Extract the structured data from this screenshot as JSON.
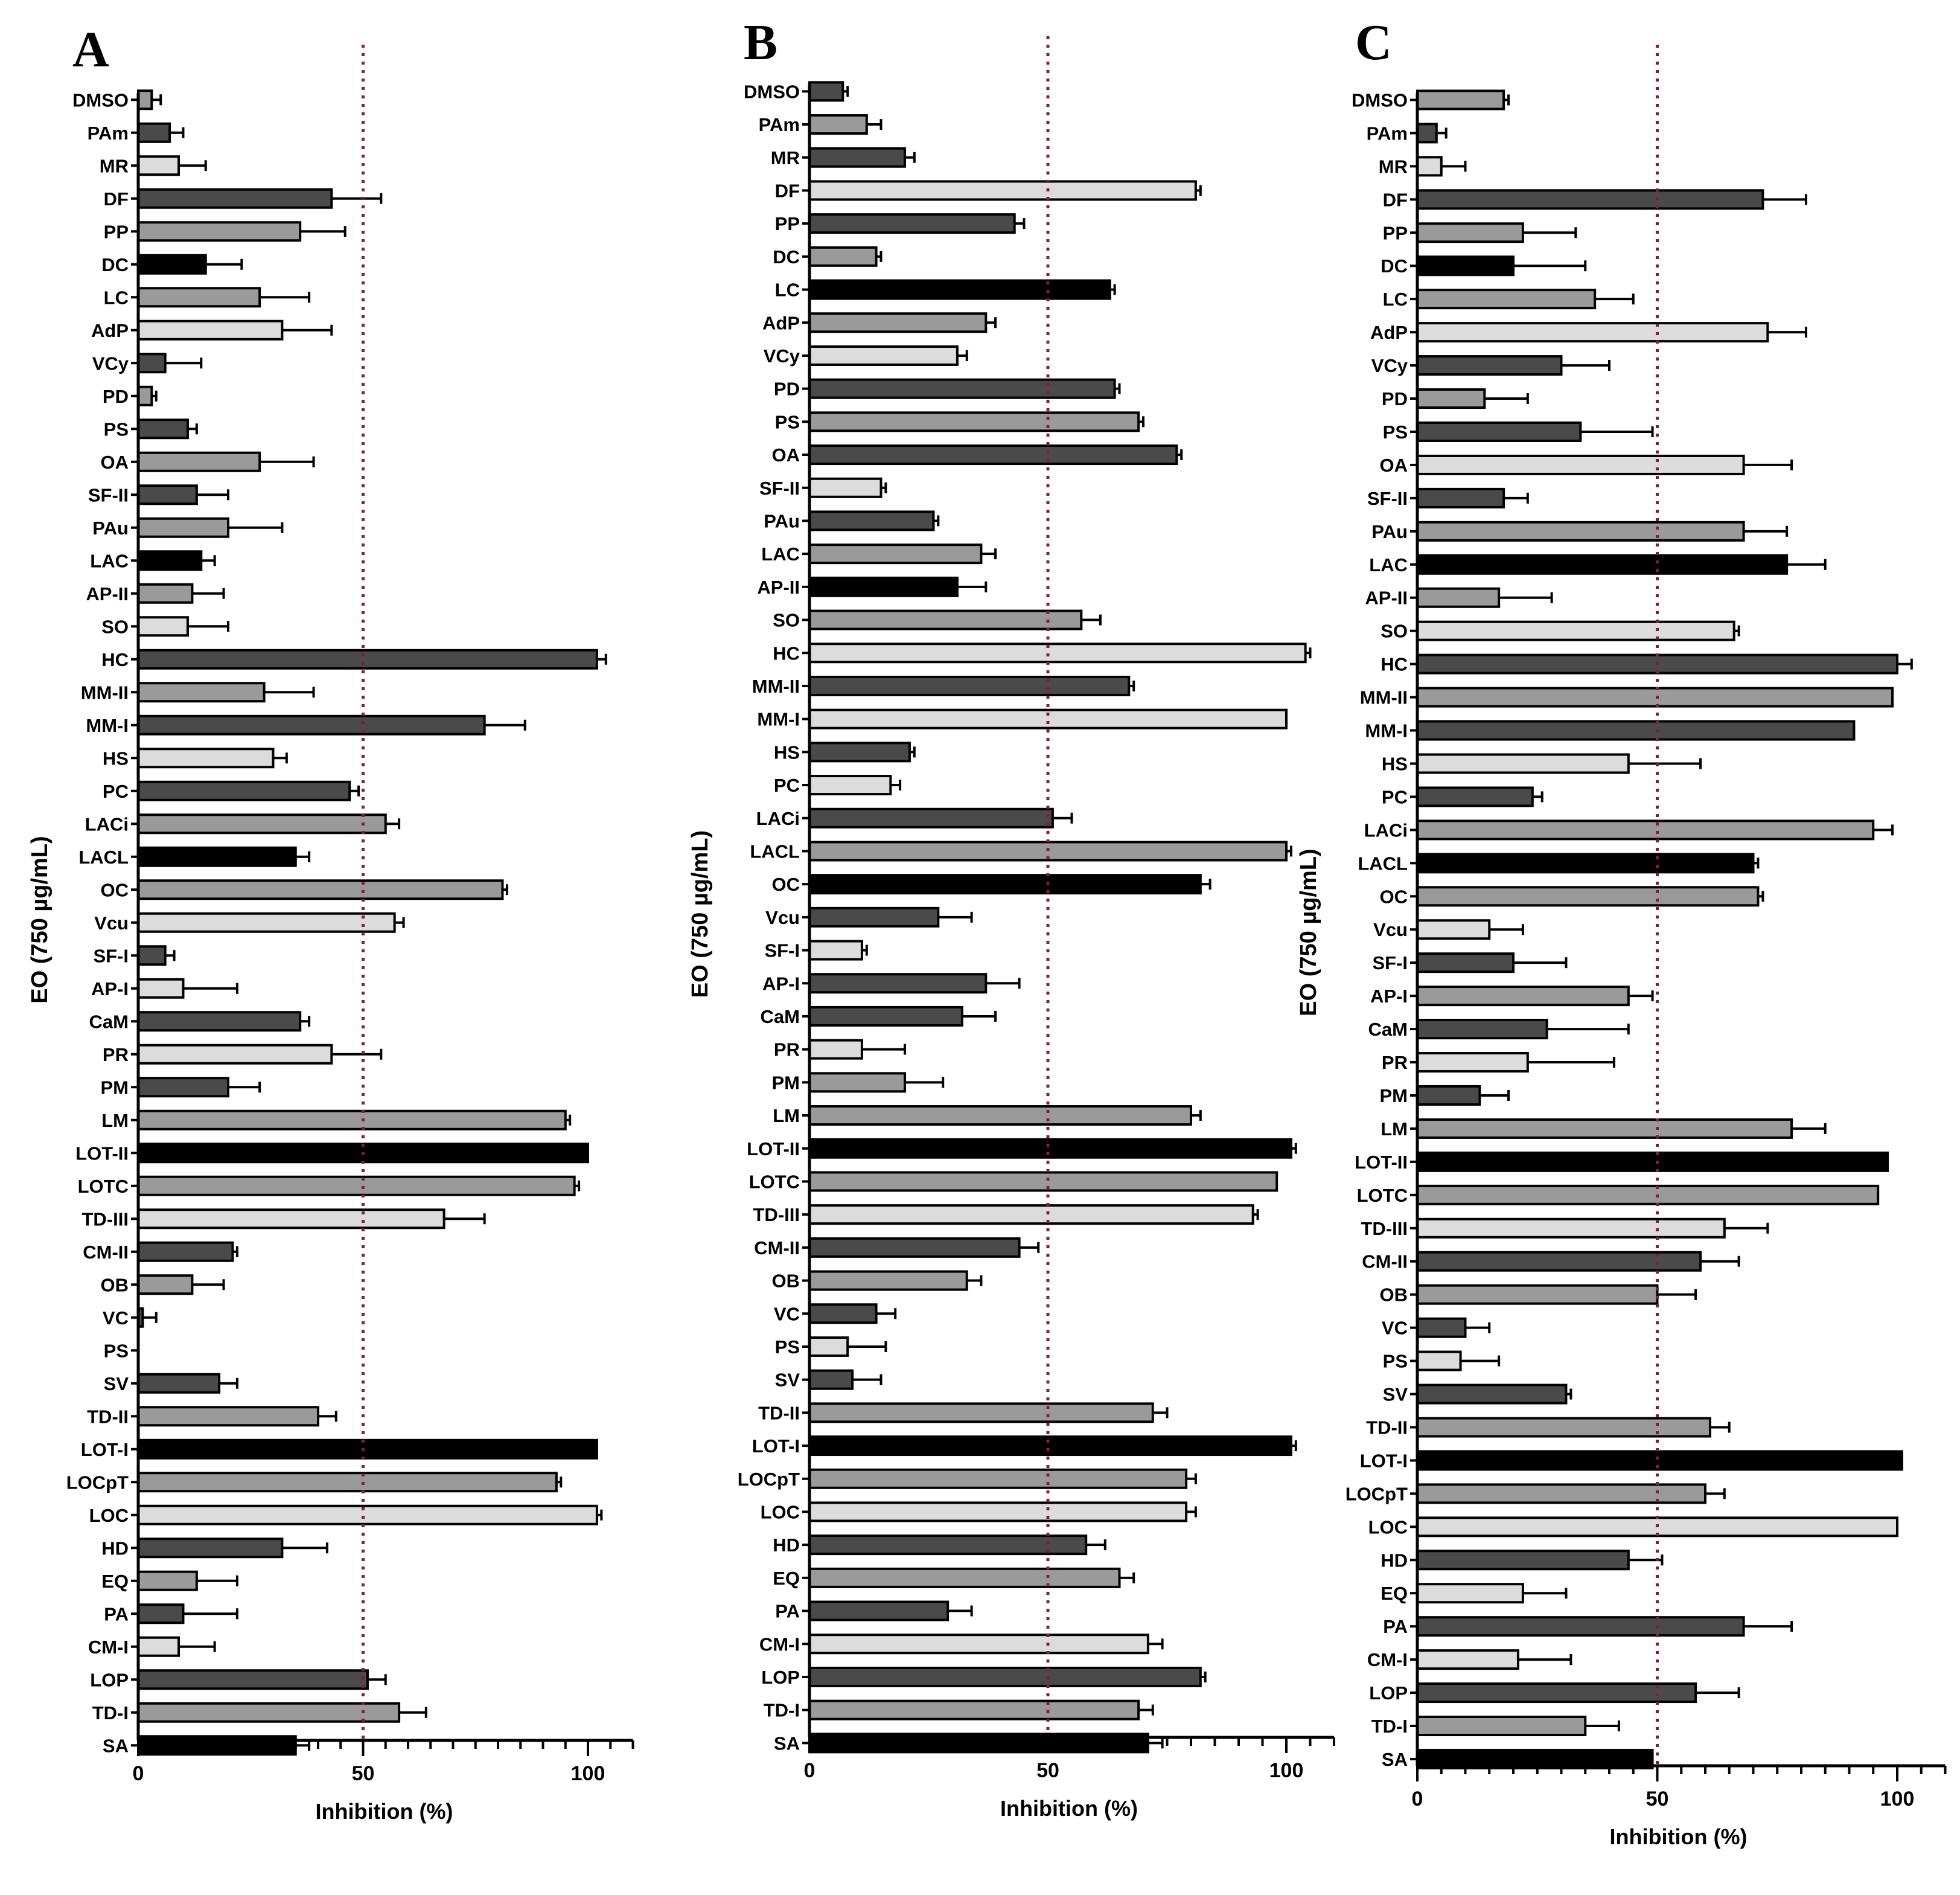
{
  "figure": {
    "ref_line": 50,
    "colors": {
      "black": "#000000",
      "dark": "#4a4a4a",
      "mid": "#9a9a9a",
      "light": "#dcdcdc",
      "ref_line": "#8b1a3a"
    }
  },
  "chart_data": [
    {
      "type": "bar",
      "panel": "A",
      "ylabel": "EO (750 µg/mL)",
      "xlabel": "Inhibition (%)",
      "xlim": [
        0,
        110
      ],
      "xticks": [
        "0",
        "50",
        "100"
      ],
      "categories": [
        "DMSO",
        "PAm",
        "MR",
        "DF",
        "PP",
        "DC",
        "LC",
        "AdP",
        "VCy",
        "PD",
        "PS",
        "OA",
        "SF-II",
        "PAu",
        "LAC",
        "AP-II",
        "SO",
        "HC",
        "MM-II",
        "MM-I",
        "HS",
        "PC",
        "LACi",
        "LACL",
        "OC",
        "Vcu",
        "SF-I",
        "AP-I",
        "CaM",
        "PR",
        "PM",
        "LM",
        "LOT-II",
        "LOTC",
        "TD-III",
        "CM-II",
        "OB",
        "VC",
        "PS",
        "SV",
        "TD-II",
        "LOT-I",
        "LOCpT",
        "LOC",
        "HD",
        "EQ",
        "PA",
        "CM-I",
        "LOP",
        "TD-I",
        "SA"
      ],
      "values": [
        3,
        7,
        9,
        43,
        36,
        15,
        27,
        32,
        6,
        3,
        11,
        27,
        13,
        20,
        14,
        12,
        11,
        102,
        28,
        77,
        30,
        47,
        55,
        35,
        81,
        57,
        6,
        10,
        36,
        43,
        20,
        95,
        100,
        97,
        68,
        21,
        12,
        1,
        0,
        18,
        40,
        102,
        93,
        102,
        32,
        13,
        10,
        9,
        51,
        58,
        35
      ],
      "errors": [
        2,
        3,
        6,
        11,
        10,
        8,
        11,
        11,
        8,
        1,
        2,
        12,
        7,
        12,
        3,
        7,
        9,
        2,
        11,
        9,
        3,
        2,
        3,
        3,
        1,
        2,
        2,
        12,
        2,
        11,
        7,
        1,
        0,
        1,
        9,
        1,
        7,
        3,
        0,
        4,
        4,
        0,
        1,
        1,
        10,
        9,
        12,
        8,
        4,
        6,
        3
      ],
      "shades": [
        "mid",
        "dark",
        "light",
        "dark",
        "mid",
        "black",
        "mid",
        "light",
        "dark",
        "mid",
        "dark",
        "mid",
        "dark",
        "mid",
        "black",
        "mid",
        "light",
        "dark",
        "mid",
        "dark",
        "light",
        "dark",
        "mid",
        "black",
        "mid",
        "light",
        "dark",
        "light",
        "dark",
        "light",
        "dark",
        "mid",
        "black",
        "mid",
        "light",
        "dark",
        "mid",
        "dark",
        "mid",
        "dark",
        "mid",
        "black",
        "mid",
        "light",
        "dark",
        "mid",
        "dark",
        "light",
        "dark",
        "mid",
        "black"
      ]
    },
    {
      "type": "bar",
      "panel": "B",
      "ylabel": "EO (750 µg/mL)",
      "xlabel": "Inhibition (%)",
      "xlim": [
        0,
        110
      ],
      "xticks": [
        "0",
        "50",
        "100"
      ],
      "categories": [
        "DMSO",
        "PAm",
        "MR",
        "DF",
        "PP",
        "DC",
        "LC",
        "AdP",
        "VCy",
        "PD",
        "PS",
        "OA",
        "SF-II",
        "PAu",
        "LAC",
        "AP-II",
        "SO",
        "HC",
        "MM-II",
        "MM-I",
        "HS",
        "PC",
        "LACi",
        "LACL",
        "OC",
        "Vcu",
        "SF-I",
        "AP-I",
        "CaM",
        "PR",
        "PM",
        "LM",
        "LOT-II",
        "LOTC",
        "TD-III",
        "CM-II",
        "OB",
        "VC",
        "PS",
        "SV",
        "TD-II",
        "LOT-I",
        "LOCpT",
        "LOC",
        "HD",
        "EQ",
        "PA",
        "CM-I",
        "LOP",
        "TD-I",
        "SA"
      ],
      "values": [
        7,
        12,
        20,
        81,
        43,
        14,
        63,
        37,
        31,
        64,
        69,
        77,
        15,
        26,
        36,
        31,
        57,
        104,
        67,
        100,
        21,
        17,
        51,
        100,
        82,
        27,
        11,
        37,
        32,
        11,
        20,
        80,
        101,
        98,
        93,
        44,
        33,
        14,
        8,
        9,
        72,
        101,
        79,
        79,
        58,
        65,
        29,
        71,
        82,
        69,
        71
      ],
      "errors": [
        1,
        3,
        2,
        1,
        2,
        1,
        1,
        2,
        2,
        1,
        1,
        1,
        1,
        1,
        3,
        6,
        4,
        1,
        1,
        0,
        1,
        2,
        4,
        1,
        2,
        7,
        1,
        7,
        7,
        9,
        8,
        2,
        1,
        0,
        1,
        4,
        3,
        4,
        8,
        6,
        3,
        1,
        2,
        2,
        4,
        3,
        5,
        3,
        1,
        3,
        3
      ],
      "shades": [
        "dark",
        "mid",
        "dark",
        "light",
        "dark",
        "mid",
        "black",
        "mid",
        "light",
        "dark",
        "mid",
        "dark",
        "light",
        "dark",
        "mid",
        "black",
        "mid",
        "light",
        "dark",
        "light",
        "dark",
        "light",
        "dark",
        "mid",
        "black",
        "dark",
        "light",
        "dark",
        "dark",
        "light",
        "mid",
        "mid",
        "black",
        "mid",
        "light",
        "dark",
        "mid",
        "dark",
        "light",
        "dark",
        "mid",
        "black",
        "mid",
        "light",
        "dark",
        "mid",
        "dark",
        "light",
        "dark",
        "mid",
        "black"
      ]
    },
    {
      "type": "bar",
      "panel": "C",
      "ylabel": "EO (750 µg/mL)",
      "xlabel": "Inhibition (%)",
      "xlim": [
        0,
        110
      ],
      "xticks": [
        "0",
        "50",
        "100"
      ],
      "categories": [
        "DMSO",
        "PAm",
        "MR",
        "DF",
        "PP",
        "DC",
        "LC",
        "AdP",
        "VCy",
        "PD",
        "PS",
        "OA",
        "SF-II",
        "PAu",
        "LAC",
        "AP-II",
        "SO",
        "HC",
        "MM-II",
        "MM-I",
        "HS",
        "PC",
        "LACi",
        "LACL",
        "OC",
        "Vcu",
        "SF-I",
        "AP-I",
        "CaM",
        "PR",
        "PM",
        "LM",
        "LOT-II",
        "LOTC",
        "TD-III",
        "CM-II",
        "OB",
        "VC",
        "PS",
        "SV",
        "TD-II",
        "LOT-I",
        "LOCpT",
        "LOC",
        "HD",
        "EQ",
        "PA",
        "CM-I",
        "LOP",
        "TD-I",
        "SA"
      ],
      "values": [
        18,
        4,
        5,
        72,
        22,
        20,
        37,
        73,
        30,
        14,
        34,
        68,
        18,
        68,
        77,
        17,
        66,
        100,
        99,
        91,
        44,
        24,
        95,
        70,
        71,
        15,
        20,
        44,
        27,
        23,
        13,
        78,
        98,
        96,
        64,
        59,
        50,
        10,
        9,
        31,
        61,
        101,
        60,
        100,
        44,
        22,
        68,
        21,
        58,
        35,
        49
      ],
      "errors": [
        1,
        2,
        5,
        9,
        11,
        15,
        8,
        8,
        10,
        9,
        15,
        10,
        5,
        9,
        8,
        11,
        1,
        3,
        0,
        0,
        15,
        2,
        4,
        1,
        1,
        7,
        11,
        5,
        17,
        18,
        6,
        7,
        0,
        0,
        9,
        8,
        8,
        5,
        8,
        1,
        4,
        0,
        4,
        0,
        7,
        9,
        10,
        11,
        9,
        7,
        0
      ],
      "shades": [
        "mid",
        "dark",
        "light",
        "dark",
        "mid",
        "black",
        "mid",
        "light",
        "dark",
        "mid",
        "dark",
        "light",
        "dark",
        "mid",
        "black",
        "mid",
        "light",
        "dark",
        "mid",
        "dark",
        "light",
        "dark",
        "mid",
        "black",
        "mid",
        "light",
        "dark",
        "mid",
        "dark",
        "light",
        "dark",
        "mid",
        "black",
        "mid",
        "light",
        "dark",
        "mid",
        "dark",
        "light",
        "dark",
        "mid",
        "black",
        "mid",
        "light",
        "dark",
        "light",
        "dark",
        "light",
        "dark",
        "mid",
        "black"
      ]
    }
  ]
}
